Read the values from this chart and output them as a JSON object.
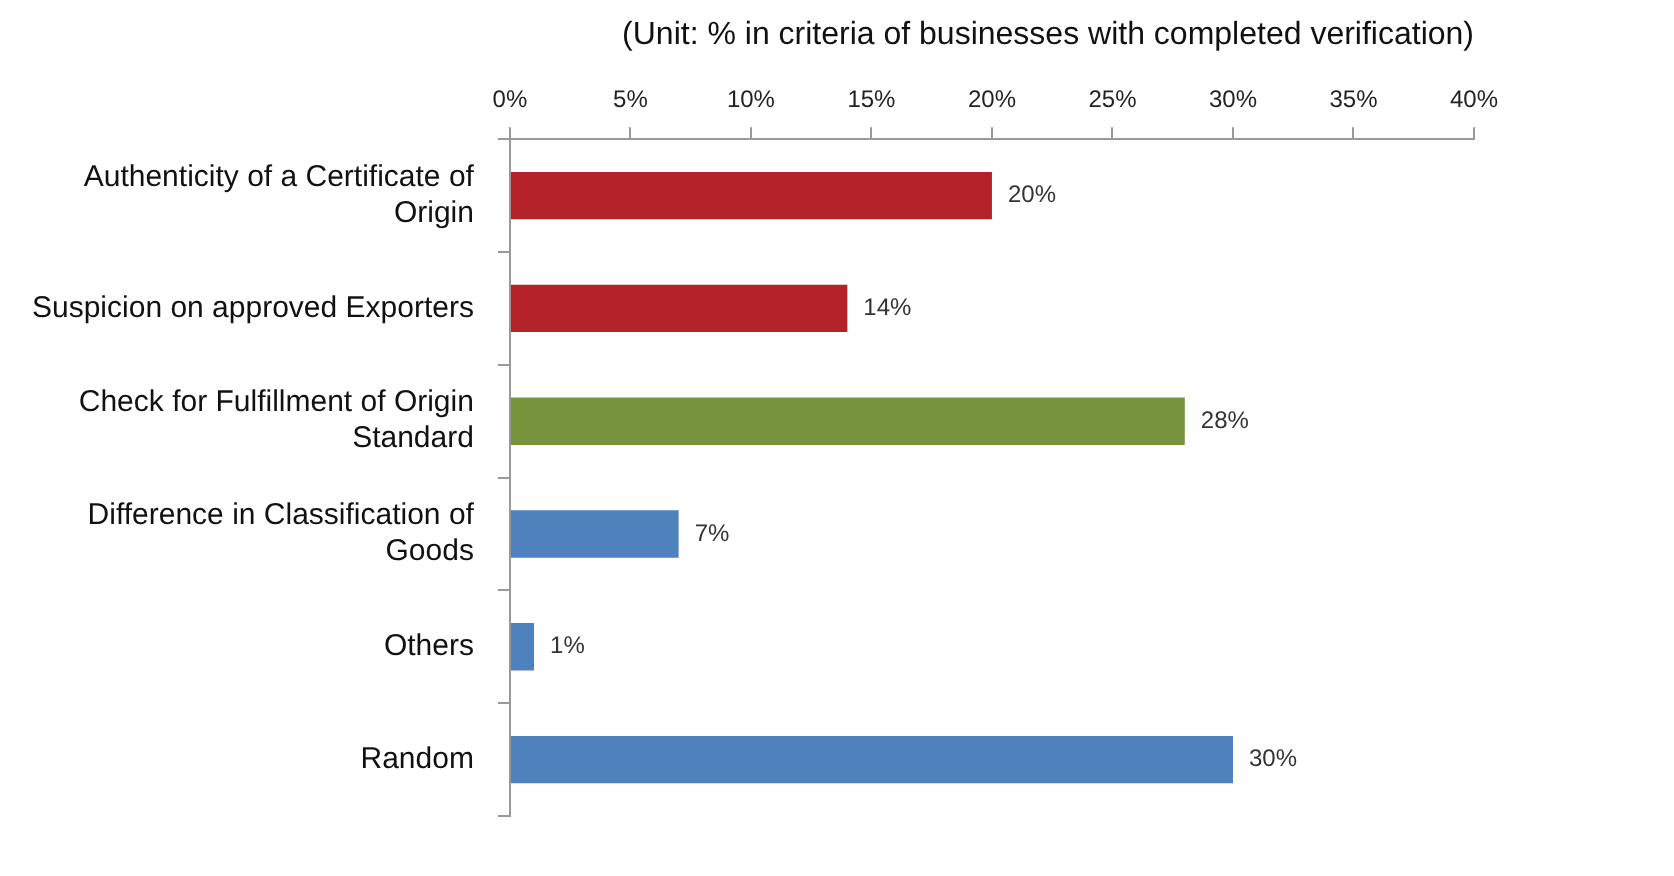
{
  "chart_data": {
    "type": "bar",
    "orientation": "horizontal",
    "title": "(Unit: % in criteria of businesses with completed verification)",
    "categories": [
      "Authenticity of a Certificate of Origin",
      "Suspicion on approved Exporters",
      "Check for Fulfillment of Origin Standard",
      "Difference in Classification of Goods",
      "Others",
      "Random"
    ],
    "values": [
      20,
      14,
      28,
      7,
      1,
      30
    ],
    "colors": [
      "#b5232a",
      "#b5232a",
      "#77933c",
      "#4f81bd",
      "#4f81bd",
      "#4f81bd"
    ],
    "value_labels": [
      "20%",
      "14%",
      "28%",
      "7%",
      "1%",
      "30%"
    ],
    "xlim": [
      0,
      40
    ],
    "xticks": [
      {
        "value": 0,
        "label": "0%"
      },
      {
        "value": 5,
        "label": "5%"
      },
      {
        "value": 10,
        "label": "10%"
      },
      {
        "value": 15,
        "label": "15%"
      },
      {
        "value": 20,
        "label": "20%"
      },
      {
        "value": 25,
        "label": "25%"
      },
      {
        "value": 30,
        "label": "30%"
      },
      {
        "value": 35,
        "label": "35%"
      },
      {
        "value": 40,
        "label": "40%"
      }
    ],
    "grid": false,
    "legend": false
  }
}
